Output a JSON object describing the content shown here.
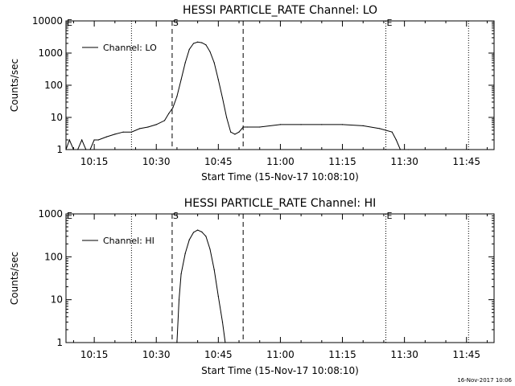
{
  "footer": {
    "timestamp": "16-Nov-2017 10:06"
  },
  "chart_data": [
    {
      "type": "line",
      "title": "HESSI PARTICLE_RATE Channel: LO",
      "xlabel": "Start Time (15-Nov-17 10:08:10)",
      "ylabel": "Counts/sec",
      "yscale": "log",
      "xlim": [
        "10:08:10",
        "11:51:40"
      ],
      "ylim": [
        1,
        10000
      ],
      "x_ticks": [
        "10:15",
        "10:30",
        "10:45",
        "11:00",
        "11:15",
        "11:30",
        "11:45"
      ],
      "y_ticks": [
        "1",
        "10",
        "100",
        "1000",
        "10000"
      ],
      "legend": {
        "position": "top-left",
        "label": "Channel: LO"
      },
      "series": [
        {
          "name": "Channel: LO",
          "x": [
            "10:08:10",
            "10:09:00",
            "10:10:00",
            "10:11:00",
            "10:12:00",
            "10:13:00",
            "10:14:00",
            "10:15:00",
            "10:16:00",
            "10:18:00",
            "10:20:00",
            "10:22:00",
            "10:24:00",
            "10:26:00",
            "10:28:00",
            "10:30:00",
            "10:32:00",
            "10:33:00",
            "10:34:00",
            "10:35:00",
            "10:36:00",
            "10:37:00",
            "10:38:00",
            "10:39:00",
            "10:40:00",
            "10:41:00",
            "10:42:00",
            "10:43:00",
            "10:44:00",
            "10:45:00",
            "10:46:00",
            "10:47:00",
            "10:48:00",
            "10:49:00",
            "10:50:00",
            "10:51:00",
            "10:52:00",
            "10:55:00",
            "11:00:00",
            "11:05:00",
            "11:10:00",
            "11:15:00",
            "11:20:00",
            "11:24:00",
            "11:27:00",
            "11:28:00",
            "11:29:00",
            "11:31:00"
          ],
          "y": [
            1,
            2,
            1,
            1,
            2,
            1,
            1,
            2,
            2,
            2.5,
            3,
            3.5,
            3.5,
            4.5,
            5,
            6,
            8,
            13,
            20,
            45,
            150,
            500,
            1300,
            2000,
            2200,
            2100,
            1800,
            1100,
            500,
            150,
            40,
            10,
            3.5,
            3,
            3.5,
            5,
            5,
            5,
            6,
            6,
            6,
            6,
            5.5,
            4.5,
            3.5,
            2,
            1,
            1
          ]
        }
      ],
      "markers": [
        {
          "time": "10:24:00",
          "style": "dotted"
        },
        {
          "time": "10:33:50",
          "style": "dashed",
          "label": "S"
        },
        {
          "time": "10:51:00",
          "style": "dashed"
        },
        {
          "time": "11:25:30",
          "style": "dotted",
          "label": "E"
        },
        {
          "time": "11:45:30",
          "style": "dotted"
        }
      ],
      "corner_label": "E"
    },
    {
      "type": "line",
      "title": "HESSI PARTICLE_RATE Channel: HI",
      "xlabel": "Start Time (15-Nov-17 10:08:10)",
      "ylabel": "Counts/sec",
      "yscale": "log",
      "xlim": [
        "10:08:10",
        "11:51:40"
      ],
      "ylim": [
        1,
        1000
      ],
      "x_ticks": [
        "10:15",
        "10:30",
        "10:45",
        "11:00",
        "11:15",
        "11:30",
        "11:45"
      ],
      "y_ticks": [
        "1",
        "10",
        "100",
        "1000"
      ],
      "legend": {
        "position": "top-left",
        "label": "Channel: HI"
      },
      "series": [
        {
          "name": "Channel: HI",
          "x": [
            "10:35:00",
            "10:35:30",
            "10:36:00",
            "10:37:00",
            "10:38:00",
            "10:39:00",
            "10:40:00",
            "10:41:00",
            "10:42:00",
            "10:43:00",
            "10:44:00",
            "10:45:00",
            "10:46:00",
            "10:46:40"
          ],
          "y": [
            1,
            10,
            40,
            120,
            250,
            370,
            420,
            380,
            300,
            150,
            50,
            12,
            3,
            1
          ]
        }
      ],
      "markers": [
        {
          "time": "10:24:00",
          "style": "dotted"
        },
        {
          "time": "10:33:50",
          "style": "dashed",
          "label": "S"
        },
        {
          "time": "10:51:00",
          "style": "dashed"
        },
        {
          "time": "11:25:30",
          "style": "dotted",
          "label": "E"
        },
        {
          "time": "11:45:30",
          "style": "dotted"
        }
      ],
      "corner_label": "E"
    }
  ]
}
